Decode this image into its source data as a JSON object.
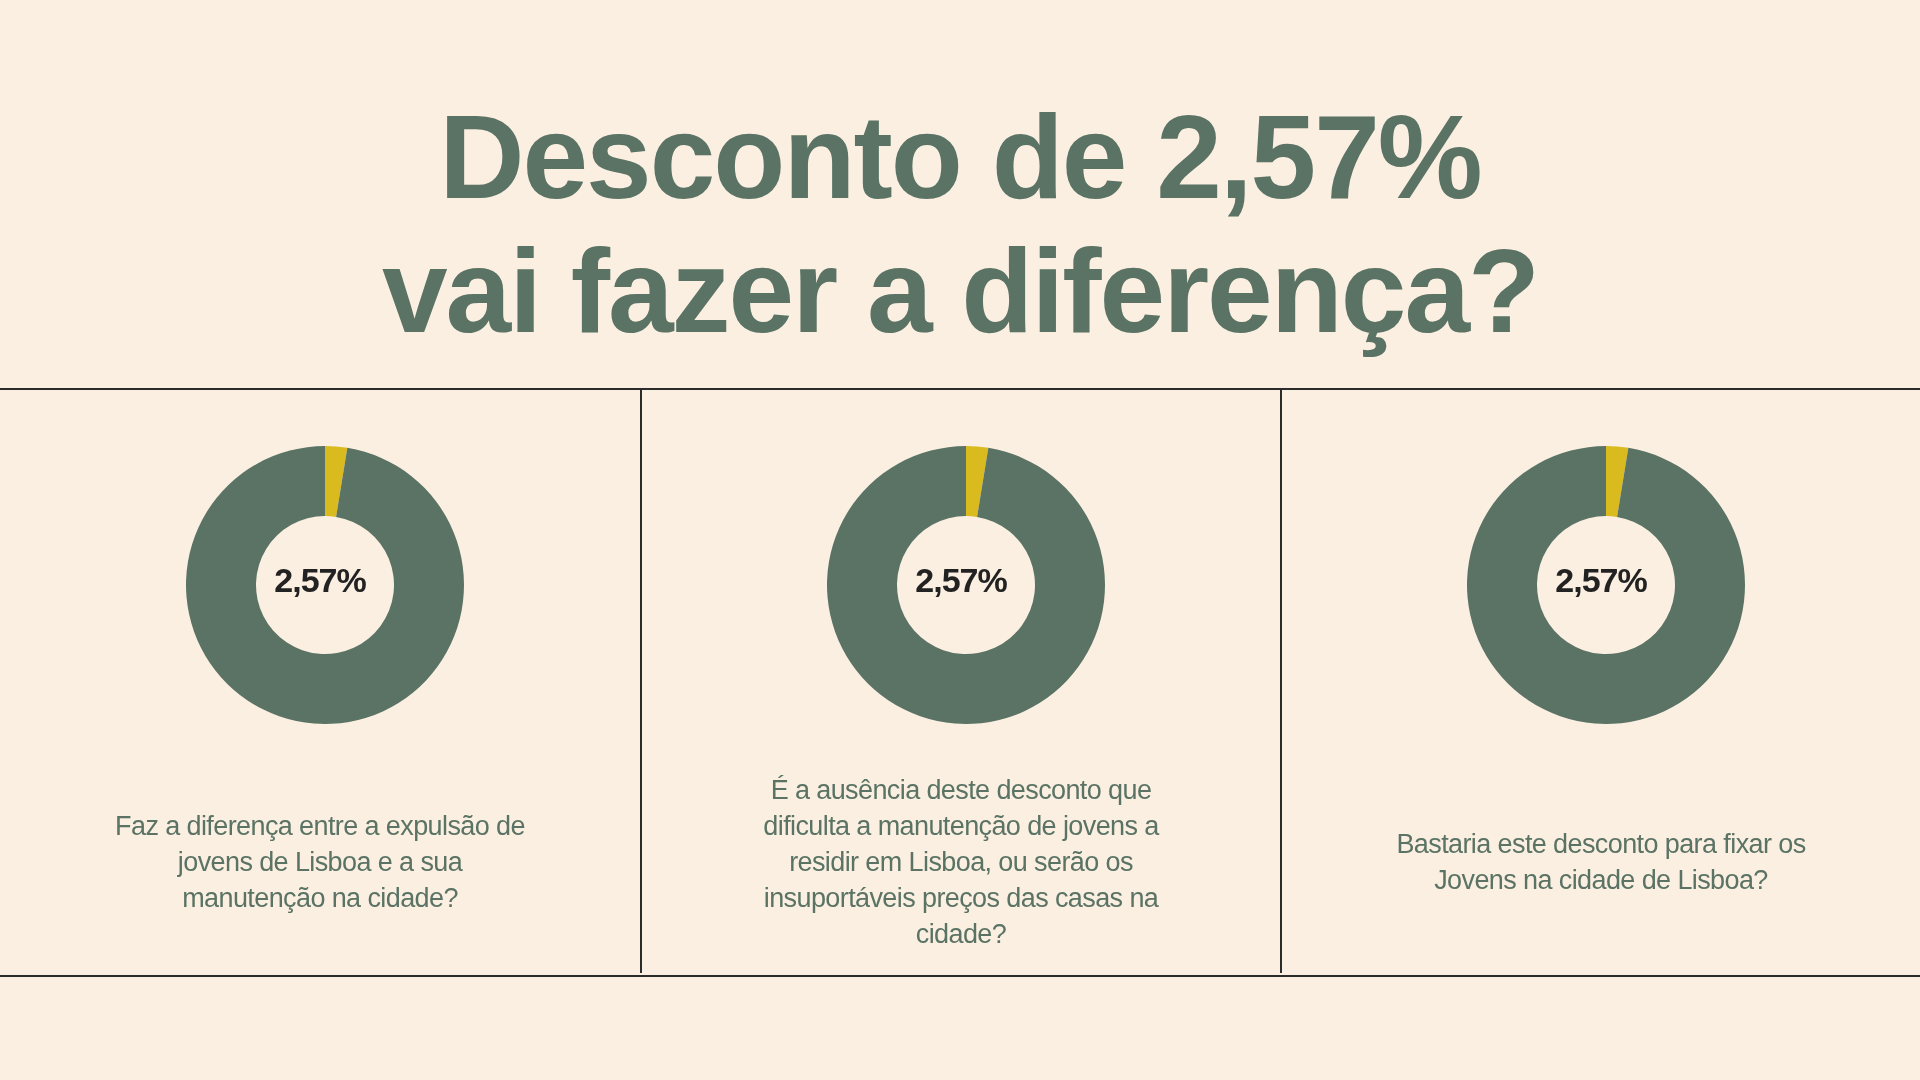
{
  "chart_data": [
    {
      "type": "donut",
      "title": "Desconto de 2,57%\nvai fazer a diferença?",
      "categories": [
        null,
        null
      ],
      "values": [
        2.57,
        97.43
      ],
      "colors": [
        "#d9ba1f",
        "#5a7364"
      ],
      "annotations": [
        "2,57%",
        "Faz a diferença entre a expulsão de jovens de Lisboa e a sua manutenção na cidade?"
      ]
    },
    {
      "type": "donut",
      "categories": [
        null,
        null
      ],
      "values": [
        2.57,
        97.43
      ],
      "colors": [
        "#d9ba1f",
        "#5a7364"
      ],
      "annotations": [
        "2,57%",
        "É a ausência deste desconto que dificulta a manutenção de jovens a residir em Lisboa, ou serão os insuportáveis preços das casas na cidade?"
      ]
    },
    {
      "type": "donut",
      "categories": [
        null,
        null
      ],
      "values": [
        2.57,
        97.43
      ],
      "colors": [
        "#d9ba1f",
        "#5a7364"
      ],
      "annotations": [
        "2,57%",
        "Bastaria este desconto para fixar os Jovens na cidade de Lisboa?"
      ]
    }
  ]
}
